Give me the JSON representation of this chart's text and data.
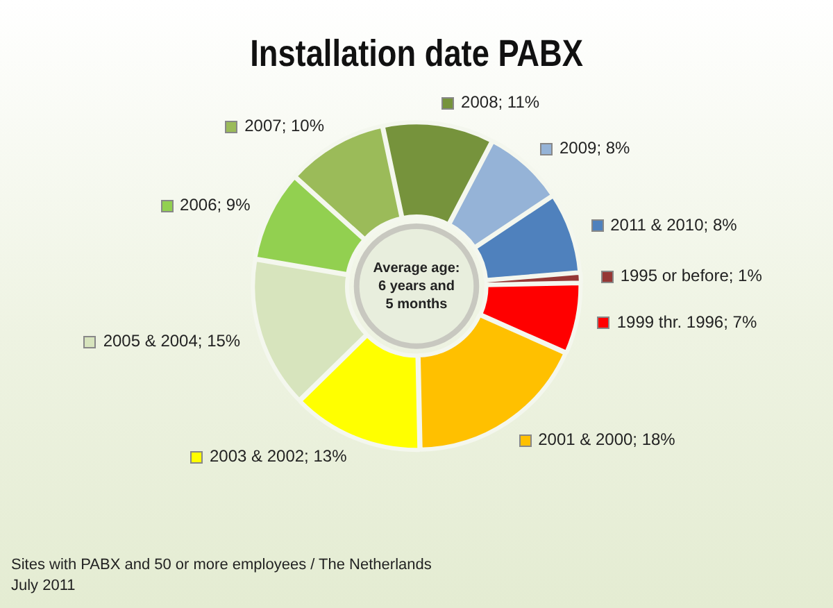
{
  "chart_data": {
    "type": "donut",
    "title": "Installation date PABX",
    "categories": [
      "2008",
      "2009",
      "2011 & 2010",
      "1995 or before",
      "1999 thr. 1996",
      "2001 & 2000",
      "2003 & 2002",
      "2005 & 2004",
      "2006",
      "2007"
    ],
    "values": [
      11,
      8,
      8,
      1,
      7,
      18,
      13,
      15,
      9,
      10
    ],
    "value_labels": [
      "11%",
      "8%",
      "8%",
      "1%",
      "7%",
      "18%",
      "13%",
      "15%",
      "9%",
      "10%"
    ],
    "colors": [
      "#76933c",
      "#95b3d7",
      "#4f81bd",
      "#953735",
      "#ff0000",
      "#ffc000",
      "#ffff00",
      "#d7e4bd",
      "#92d050",
      "#9bbb59"
    ],
    "annotations": [
      "Average age: 6 years and 5 months",
      "Sites with PABX and 50 or more employees / The Netherlands",
      "July 2011"
    ],
    "legend": true
  }
}
